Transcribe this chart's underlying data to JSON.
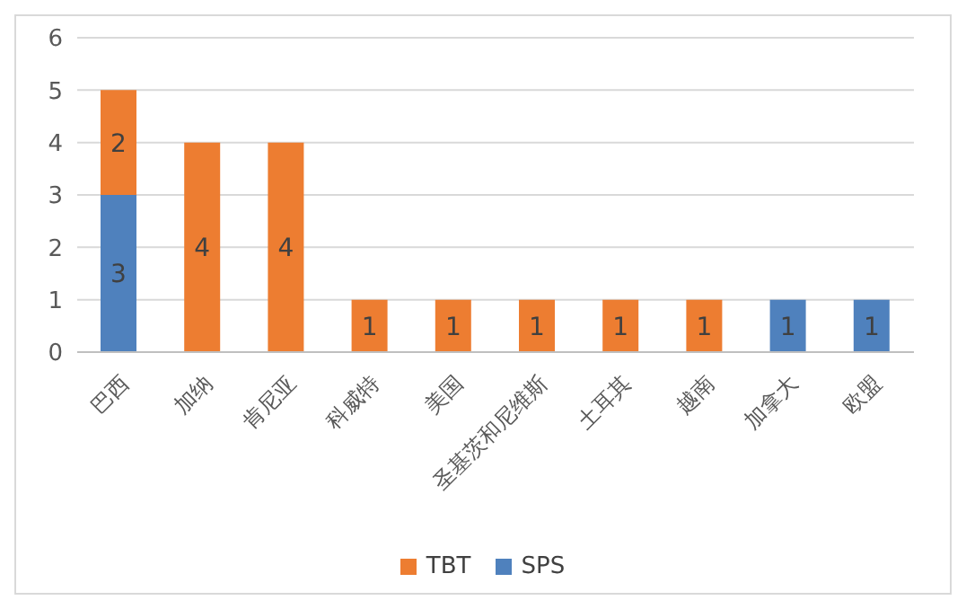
{
  "chart_data": {
    "type": "bar",
    "stacked": true,
    "categories": [
      "巴西",
      "加纳",
      "肯尼亚",
      "科威特",
      "美国",
      "圣基茨和尼维斯",
      "土耳其",
      "越南",
      "加拿大",
      "欧盟"
    ],
    "series": [
      {
        "name": "SPS",
        "color": "#4f81bd",
        "values": [
          3,
          0,
          0,
          0,
          0,
          0,
          0,
          0,
          1,
          1
        ],
        "value_labels": [
          "3",
          null,
          null,
          null,
          null,
          null,
          null,
          null,
          "1",
          "1"
        ]
      },
      {
        "name": "TBT",
        "color": "#ed7d31",
        "values": [
          2,
          4,
          4,
          1,
          1,
          1,
          1,
          1,
          0,
          0
        ],
        "value_labels": [
          "2",
          "4",
          "4",
          "1",
          "1",
          "1",
          "1",
          "1",
          null,
          null
        ]
      }
    ],
    "ylim": [
      0,
      6
    ],
    "yticks": [
      0,
      1,
      2,
      3,
      4,
      5,
      6
    ],
    "grid": "y",
    "legend": "bottom"
  }
}
